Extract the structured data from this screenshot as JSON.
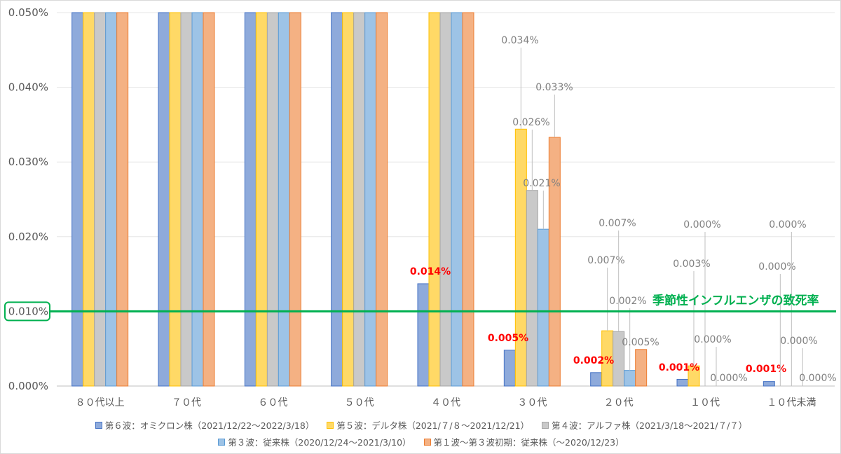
{
  "chart_data": {
    "type": "bar",
    "categories": [
      "８０代以上",
      "７０代",
      "６０代",
      "５０代",
      "４０代",
      "３０代",
      "２０代",
      "１０代",
      "１０代未満"
    ],
    "ylim": [
      0,
      0.05
    ],
    "yticks": [
      "0.000%",
      "0.010%",
      "0.020%",
      "0.030%",
      "0.040%",
      "0.050%"
    ],
    "series": [
      {
        "name": "第６波：オミクロン株（2021/12/22〜2022/3/18）",
        "color": "#8eaadb",
        "border": "#4472c4",
        "values": [
          0.05,
          0.05,
          0.05,
          0.05,
          0.0137,
          0.0048,
          0.0018,
          0.0009,
          0.0006
        ],
        "labels": [
          "",
          "",
          "",
          "",
          "0.014%",
          "0.005%",
          "0.002%",
          "0.001%",
          "0.001%"
        ]
      },
      {
        "name": "第５波：デルタ株（2021/７/８〜2021/12/21）",
        "color": "#ffd966",
        "border": "#ffc000",
        "values": [
          0.05,
          0.05,
          0.05,
          0.05,
          0.05,
          0.0344,
          0.0074,
          0.0027,
          0.0
        ],
        "labels": [
          "",
          "",
          "",
          "",
          "",
          "0.034%",
          "0.007%",
          "0.003%",
          "0.000%"
        ]
      },
      {
        "name": "第４波：アルファ株（2021/3/18〜2021/７/７）",
        "color": "#c9c9c9",
        "border": "#a5a5a5",
        "values": [
          0.05,
          0.05,
          0.05,
          0.05,
          0.05,
          0.0262,
          0.0073,
          0.0,
          0.0
        ],
        "labels": [
          "",
          "",
          "",
          "",
          "",
          "0.026%",
          "0.007%",
          "0.000%",
          "0.000%"
        ]
      },
      {
        "name": "第３波：従来株（2020/12/24〜2021/3/10）",
        "color": "#9dc3e6",
        "border": "#5b9bd5",
        "values": [
          0.05,
          0.05,
          0.05,
          0.05,
          0.05,
          0.021,
          0.0021,
          0.0,
          0.0
        ],
        "labels": [
          "",
          "",
          "",
          "",
          "",
          "0.021%",
          "0.002%",
          "0.000%",
          "0.000%"
        ]
      },
      {
        "name": "第１波〜第３波初期：従来株（〜2020/12/23）",
        "color": "#f4b183",
        "border": "#ed7d31",
        "values": [
          0.05,
          0.05,
          0.05,
          0.05,
          0.05,
          0.0333,
          0.0049,
          0.0,
          0.0
        ],
        "labels": [
          "",
          "",
          "",
          "",
          "",
          "0.033%",
          "0.005%",
          "0.000%",
          "0.000%"
        ]
      }
    ],
    "reference_line": {
      "value": 0.01,
      "label": "季節性インフルエンザの致死率",
      "highlighted_tick": "0.010%",
      "color": "#00b050"
    },
    "highlight_label_color": "#ff0000",
    "grid": true,
    "legend_position": "bottom"
  }
}
